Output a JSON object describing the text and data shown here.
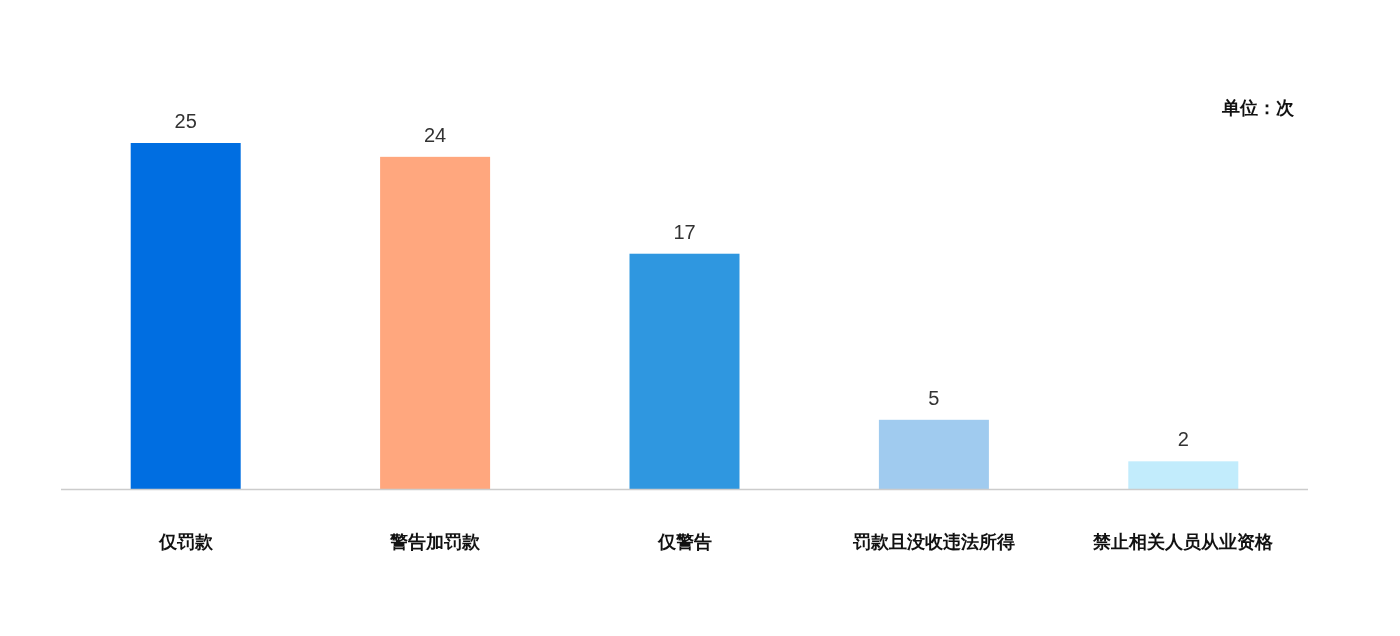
{
  "chart_data": {
    "type": "bar",
    "categories": [
      "仅罚款",
      "警告加罚款",
      "仅警告",
      "罚款且没收违法所得",
      "禁止相关人员从业资格"
    ],
    "values": [
      25,
      24,
      17,
      5,
      2
    ],
    "colors": [
      "#006ee1",
      "#ffa77e",
      "#2f97e0",
      "#a0cbef",
      "#c2ecfc"
    ],
    "data_labels": true,
    "annotations": [
      "单位：次"
    ]
  }
}
